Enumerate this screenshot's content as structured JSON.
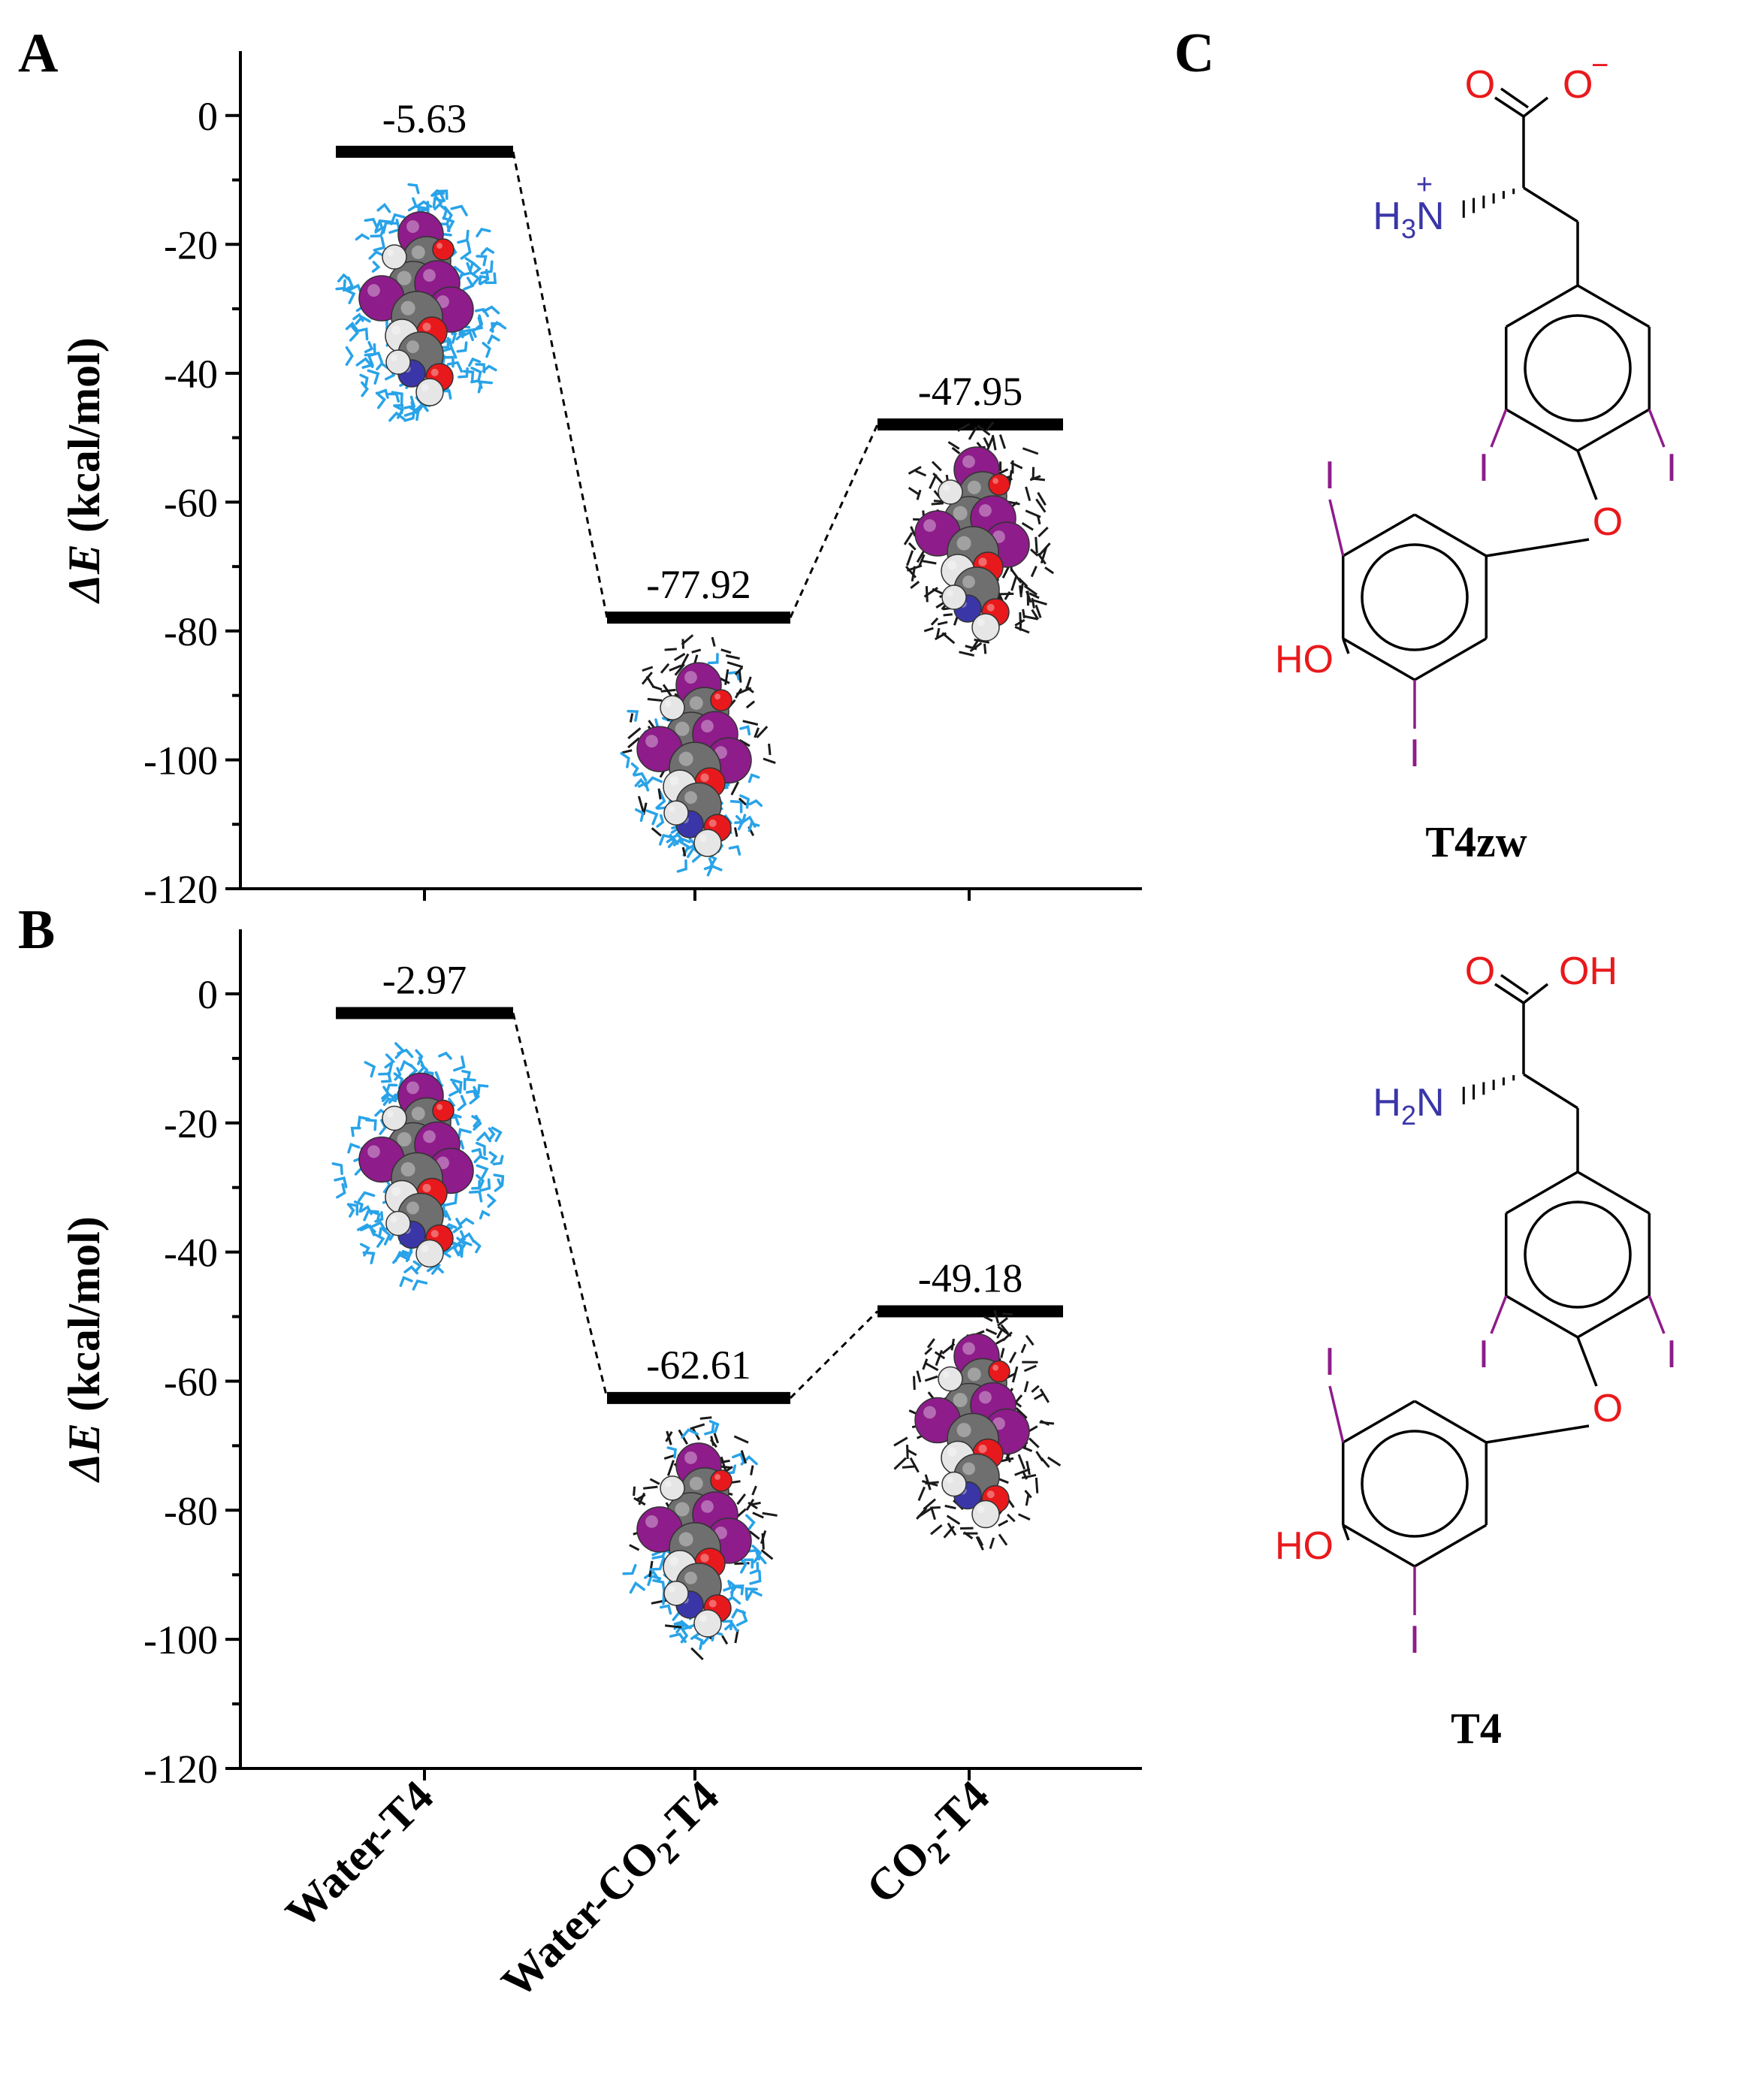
{
  "figure": {
    "y_axis_label": "ΔE (kcal/mol)",
    "x_categories": [
      "Water-T4",
      "Water-CO2-T4",
      "CO2-T4"
    ],
    "colors": {
      "iodine": "#8e1c8a",
      "oxygen": "#e8191c",
      "nitrogen": "#3a36a8",
      "carbon": "#6f6f6f",
      "hydrogen": "#e6e6e6",
      "water": "#29a3e8",
      "co2": "#1a1a1a"
    }
  },
  "chart_data": [
    {
      "panel": "A",
      "type": "energy-level diagram",
      "categories": [
        "Water-T4",
        "Water-CO2-T4",
        "CO2-T4"
      ],
      "values": [
        -5.63,
        -77.92,
        -47.95
      ],
      "value_labels": [
        "-5.63",
        "-77.92",
        "-47.95"
      ],
      "ylabel": "ΔE (kcal/mol)",
      "ylim": [
        -120,
        10
      ],
      "yticks": [
        0,
        -20,
        -40,
        -60,
        -80,
        -100,
        -120
      ],
      "grid": false
    },
    {
      "panel": "B",
      "type": "energy-level diagram",
      "categories": [
        "Water-T4",
        "Water-CO2-T4",
        "CO2-T4"
      ],
      "values": [
        -2.97,
        -62.61,
        -49.18
      ],
      "value_labels": [
        "-2.97",
        "-62.61",
        "-49.18"
      ],
      "ylabel": "ΔE (kcal/mol)",
      "ylim": [
        -120,
        10
      ],
      "yticks": [
        0,
        -20,
        -40,
        -60,
        -80,
        -100,
        -120
      ],
      "grid": false
    }
  ],
  "panel_c": {
    "panel_label": "C",
    "structures": [
      {
        "name": "T4zw",
        "top_left_O": "O",
        "top_right_group": "O",
        "charge": "−",
        "amine": "H3N",
        "amine_charge": "+"
      },
      {
        "name": "T4",
        "top_left_O": "O",
        "top_right_group": "OH",
        "amine": "H2N"
      }
    ],
    "iodine_label": "I",
    "ether_oxygen": "O",
    "hydroxyl": "HO"
  }
}
